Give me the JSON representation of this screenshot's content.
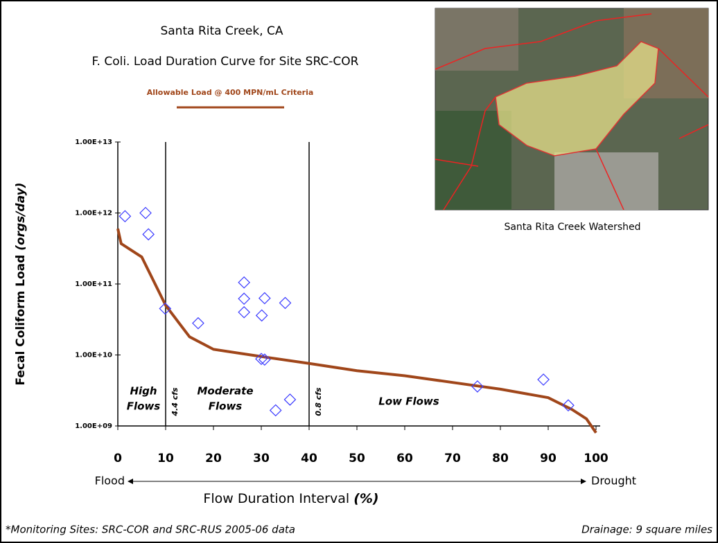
{
  "chart_data": {
    "type": "scatter",
    "title": "Santa Rita Creek, CA",
    "subtitle": "F. Coli. Load Duration Curve for Site SRC-COR",
    "ylog": true,
    "xlim": [
      0,
      100
    ],
    "ylim": [
      1000000000,
      10000000000000
    ],
    "xticks": [
      0,
      10,
      20,
      30,
      40,
      50,
      60,
      70,
      80,
      90,
      100
    ],
    "yticks": [
      {
        "value": 1000000000,
        "label": "1.00E+09"
      },
      {
        "value": 10000000000,
        "label": "1.00E+10"
      },
      {
        "value": 100000000000,
        "label": "1.00E+11"
      },
      {
        "value": 1000000000000,
        "label": "1.00E+12"
      },
      {
        "value": 10000000000000,
        "label": "1.00E+13"
      }
    ],
    "y_label": [
      "Fecal Coliform Load ",
      "(orgs/day)"
    ],
    "x_label": [
      "Flow Duration Interval ",
      "(%)"
    ],
    "x_axis_ends": [
      "Flood",
      "Drought"
    ],
    "series": [
      {
        "name": "Allowable Load @ 400 MPN/mL Criteria",
        "type": "line",
        "color": "#a0461a",
        "x": [
          0,
          0.7,
          5,
          10,
          15,
          20,
          30,
          40,
          50,
          60,
          70,
          80,
          90,
          95,
          98,
          100
        ],
        "values": [
          600000000000,
          370000000000,
          240000000000,
          50000000000,
          18000000000,
          12000000000,
          9500000000,
          7600000000,
          6000000000,
          5100000000,
          4100000000,
          3300000000,
          2500000000,
          1700000000,
          1260000000,
          800000000
        ]
      },
      {
        "type": "scatter",
        "color": "#3a3aff",
        "x": [
          1.5,
          5.8,
          6.4,
          9.9,
          16.8,
          26.4,
          26.4,
          26.4,
          30.1,
          30.7,
          35,
          30,
          30.7,
          33,
          36,
          75.2,
          89,
          94.2
        ],
        "values": [
          900000000000,
          1000000000000,
          500000000000,
          45000000000,
          28000000000,
          105000000000,
          62000000000,
          40000000000,
          36000000000,
          63000000000,
          54000000000,
          8800000000,
          8600000000,
          1660000000,
          2350000000,
          3600000000,
          4500000000,
          1950000000
        ]
      }
    ],
    "thresholds": [
      {
        "x": 10,
        "label": "4.4 cfs"
      },
      {
        "x": 40,
        "label": "0.8 cfs"
      }
    ],
    "flow_zones": [
      [
        "High",
        "Flows"
      ],
      [
        "Moderate",
        "Flows"
      ],
      [
        "Low Flows"
      ]
    ],
    "map_caption": "Santa Rita Creek Watershed",
    "footnote": "*Monitoring Sites: SRC-COR and SRC-RUS 2005-06 data",
    "drainage": "Drainage: 9 square miles"
  }
}
